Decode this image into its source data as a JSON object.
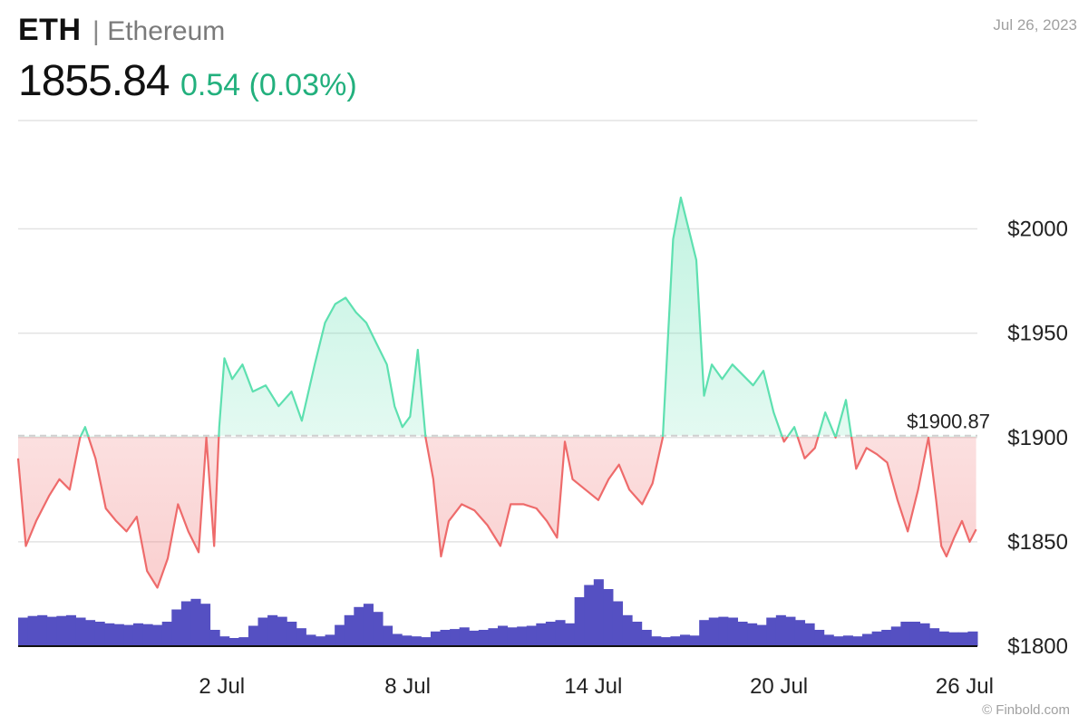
{
  "header": {
    "ticker": "ETH",
    "separator": "|",
    "name": "Ethereum",
    "price": "1855.84",
    "change": "0.54 (0.03%)",
    "date": "Jul 26, 2023",
    "credit": "© Finbold.com"
  },
  "colors": {
    "up": "#5ee0b0",
    "down": "#ee6b6b",
    "volume": "#5550c2",
    "grid": "#e3e3e3",
    "change_text": "#22b07d"
  },
  "chart_data": {
    "type": "line",
    "title": "",
    "xlabel": "",
    "ylabel": "",
    "reference_line": {
      "value": 1900.87,
      "label": "$1900.87"
    },
    "ylim": [
      1800,
      2050
    ],
    "yticks": [
      {
        "value": 1800,
        "label": "$1800"
      },
      {
        "value": 1850,
        "label": "$1850"
      },
      {
        "value": 1900,
        "label": "$1900"
      },
      {
        "value": 1950,
        "label": "$1950"
      },
      {
        "value": 2000,
        "label": "$2000"
      }
    ],
    "xlim": [
      "2023-06-26",
      "2023-07-26"
    ],
    "xticks": [
      {
        "date": "2023-07-02",
        "label": "2 Jul"
      },
      {
        "date": "2023-07-08",
        "label": "8 Jul"
      },
      {
        "date": "2023-07-14",
        "label": "14 Jul"
      },
      {
        "date": "2023-07-20",
        "label": "20 Jul"
      },
      {
        "date": "2023-07-26",
        "label": "26 Jul"
      }
    ],
    "series": [
      {
        "values": [
          [
            "2023-06-26T00:00",
            1890
          ],
          [
            "2023-06-26T06:00",
            1848
          ],
          [
            "2023-06-26T14:00",
            1860
          ],
          [
            "2023-06-27T00:00",
            1872
          ],
          [
            "2023-06-27T08:00",
            1880
          ],
          [
            "2023-06-27T16:00",
            1875
          ],
          [
            "2023-06-28T00:00",
            1900
          ],
          [
            "2023-06-28T04:00",
            1905
          ],
          [
            "2023-06-28T12:00",
            1890
          ],
          [
            "2023-06-28T20:00",
            1866
          ],
          [
            "2023-06-29T04:00",
            1860
          ],
          [
            "2023-06-29T12:00",
            1855
          ],
          [
            "2023-06-29T20:00",
            1862
          ],
          [
            "2023-06-30T04:00",
            1836
          ],
          [
            "2023-06-30T12:00",
            1828
          ],
          [
            "2023-06-30T20:00",
            1842
          ],
          [
            "2023-07-01T04:00",
            1868
          ],
          [
            "2023-07-01T12:00",
            1855
          ],
          [
            "2023-07-01T20:00",
            1845
          ],
          [
            "2023-07-02T02:00",
            1900
          ],
          [
            "2023-07-02T08:00",
            1848
          ],
          [
            "2023-07-02T12:00",
            1905
          ],
          [
            "2023-07-02T16:00",
            1938
          ],
          [
            "2023-07-02T22:00",
            1928
          ],
          [
            "2023-07-03T06:00",
            1935
          ],
          [
            "2023-07-03T14:00",
            1922
          ],
          [
            "2023-07-04T00:00",
            1925
          ],
          [
            "2023-07-04T10:00",
            1915
          ],
          [
            "2023-07-04T20:00",
            1922
          ],
          [
            "2023-07-05T04:00",
            1908
          ],
          [
            "2023-07-05T14:00",
            1935
          ],
          [
            "2023-07-05T22:00",
            1955
          ],
          [
            "2023-07-06T06:00",
            1964
          ],
          [
            "2023-07-06T14:00",
            1967
          ],
          [
            "2023-07-06T22:00",
            1960
          ],
          [
            "2023-07-07T06:00",
            1955
          ],
          [
            "2023-07-07T14:00",
            1945
          ],
          [
            "2023-07-07T22:00",
            1935
          ],
          [
            "2023-07-08T04:00",
            1915
          ],
          [
            "2023-07-08T10:00",
            1905
          ],
          [
            "2023-07-08T16:00",
            1910
          ],
          [
            "2023-07-08T22:00",
            1942
          ],
          [
            "2023-07-09T04:00",
            1900
          ],
          [
            "2023-07-09T10:00",
            1880
          ],
          [
            "2023-07-09T16:00",
            1843
          ],
          [
            "2023-07-09T22:00",
            1860
          ],
          [
            "2023-07-10T08:00",
            1868
          ],
          [
            "2023-07-10T18:00",
            1865
          ],
          [
            "2023-07-11T04:00",
            1858
          ],
          [
            "2023-07-11T14:00",
            1848
          ],
          [
            "2023-07-11T22:00",
            1868
          ],
          [
            "2023-07-12T08:00",
            1868
          ],
          [
            "2023-07-12T18:00",
            1866
          ],
          [
            "2023-07-13T02:00",
            1860
          ],
          [
            "2023-07-13T10:00",
            1852
          ],
          [
            "2023-07-13T16:00",
            1898
          ],
          [
            "2023-07-13T22:00",
            1880
          ],
          [
            "2023-07-14T08:00",
            1875
          ],
          [
            "2023-07-14T18:00",
            1870
          ],
          [
            "2023-07-15T02:00",
            1880
          ],
          [
            "2023-07-15T10:00",
            1887
          ],
          [
            "2023-07-15T18:00",
            1875
          ],
          [
            "2023-07-16T04:00",
            1868
          ],
          [
            "2023-07-16T12:00",
            1878
          ],
          [
            "2023-07-16T20:00",
            1900
          ],
          [
            "2023-07-17T04:00",
            1995
          ],
          [
            "2023-07-17T10:00",
            2015
          ],
          [
            "2023-07-17T16:00",
            2000
          ],
          [
            "2023-07-17T22:00",
            1985
          ],
          [
            "2023-07-18T04:00",
            1920
          ],
          [
            "2023-07-18T10:00",
            1935
          ],
          [
            "2023-07-18T18:00",
            1928
          ],
          [
            "2023-07-19T02:00",
            1935
          ],
          [
            "2023-07-19T10:00",
            1930
          ],
          [
            "2023-07-19T18:00",
            1925
          ],
          [
            "2023-07-20T02:00",
            1932
          ],
          [
            "2023-07-20T10:00",
            1912
          ],
          [
            "2023-07-20T18:00",
            1898
          ],
          [
            "2023-07-21T02:00",
            1905
          ],
          [
            "2023-07-21T10:00",
            1890
          ],
          [
            "2023-07-21T18:00",
            1895
          ],
          [
            "2023-07-22T02:00",
            1912
          ],
          [
            "2023-07-22T10:00",
            1900
          ],
          [
            "2023-07-22T18:00",
            1918
          ],
          [
            "2023-07-23T02:00",
            1885
          ],
          [
            "2023-07-23T10:00",
            1895
          ],
          [
            "2023-07-23T18:00",
            1892
          ],
          [
            "2023-07-24T02:00",
            1888
          ],
          [
            "2023-07-24T10:00",
            1870
          ],
          [
            "2023-07-24T18:00",
            1855
          ],
          [
            "2023-07-25T02:00",
            1875
          ],
          [
            "2023-07-25T10:00",
            1900
          ],
          [
            "2023-07-25T16:00",
            1870
          ],
          [
            "2023-07-25T20:00",
            1848
          ],
          [
            "2023-07-26T00:00",
            1843
          ],
          [
            "2023-07-26T06:00",
            1852
          ],
          [
            "2023-07-26T12:00",
            1860
          ],
          [
            "2023-07-26T18:00",
            1850
          ],
          [
            "2023-07-26T23:00",
            1856
          ]
        ]
      }
    ],
    "volume_relative": [
      0.35,
      0.37,
      0.38,
      0.36,
      0.37,
      0.38,
      0.35,
      0.32,
      0.3,
      0.28,
      0.27,
      0.26,
      0.28,
      0.27,
      0.26,
      0.3,
      0.45,
      0.55,
      0.58,
      0.52,
      0.2,
      0.12,
      0.1,
      0.11,
      0.25,
      0.35,
      0.38,
      0.36,
      0.3,
      0.22,
      0.14,
      0.12,
      0.14,
      0.26,
      0.38,
      0.48,
      0.52,
      0.42,
      0.25,
      0.15,
      0.13,
      0.12,
      0.11,
      0.18,
      0.2,
      0.21,
      0.23,
      0.19,
      0.2,
      0.22,
      0.25,
      0.23,
      0.24,
      0.25,
      0.28,
      0.3,
      0.32,
      0.28,
      0.6,
      0.75,
      0.82,
      0.7,
      0.55,
      0.38,
      0.3,
      0.2,
      0.12,
      0.11,
      0.12,
      0.14,
      0.13,
      0.32,
      0.35,
      0.36,
      0.35,
      0.3,
      0.28,
      0.26,
      0.35,
      0.38,
      0.36,
      0.32,
      0.28,
      0.2,
      0.14,
      0.12,
      0.13,
      0.12,
      0.15,
      0.18,
      0.2,
      0.24,
      0.3,
      0.3,
      0.28,
      0.22,
      0.18,
      0.17,
      0.17,
      0.18
    ]
  }
}
